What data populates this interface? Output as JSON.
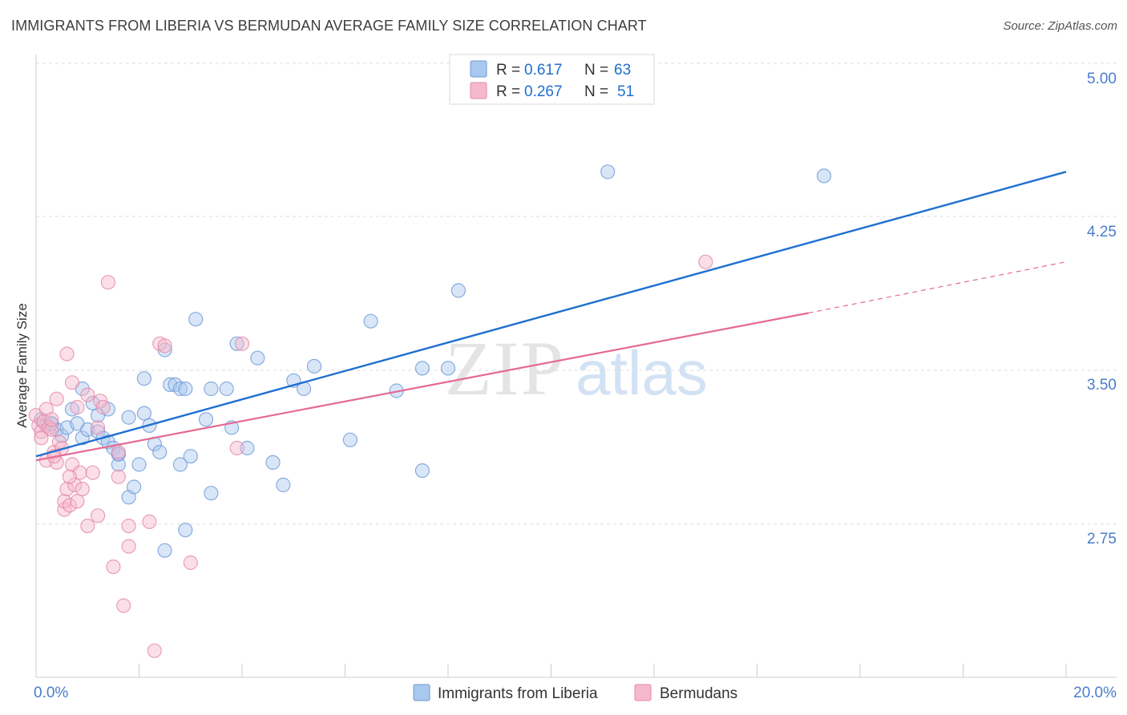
{
  "header": {
    "title": "IMMIGRANTS FROM LIBERIA VS BERMUDAN AVERAGE FAMILY SIZE CORRELATION CHART",
    "source": "Source: ZipAtlas.com"
  },
  "watermark": {
    "zip": "ZIP",
    "atlas": "atlas"
  },
  "legend": {
    "rows": [
      {
        "r_label": "R =",
        "r_value": "0.617",
        "n_label": "N =",
        "n_value": "63"
      },
      {
        "r_label": "R =",
        "r_value": "0.267",
        "n_label": "N =",
        "n_value": "51"
      }
    ]
  },
  "colors": {
    "blue": "#1f6fd0",
    "blue_fill": "#a9c8f0",
    "pink": "#e46a93",
    "pink_fill": "#f6b8cc",
    "tick_text": "#4a7cc9",
    "grid": "#dddddd"
  },
  "chart_data": {
    "type": "scatter",
    "title": "IMMIGRANTS FROM LIBERIA VS BERMUDAN AVERAGE FAMILY SIZE CORRELATION CHART",
    "xlabel": "",
    "ylabel": "Average Family Size",
    "xlim": [
      0,
      20
    ],
    "ylim": [
      2.05,
      5.1
    ],
    "x_tick_labels": [
      "0.0%",
      "20.0%"
    ],
    "y_ticks": [
      2.75,
      3.5,
      4.25,
      5.0
    ],
    "y_tick_labels": [
      "2.75",
      "3.50",
      "4.25",
      "5.00"
    ],
    "grid": true,
    "legend_position": "top-center",
    "series": [
      {
        "name": "Immigrants from Liberia",
        "color": "#1f6fd0",
        "trend": {
          "x": [
            0,
            20
          ],
          "y": [
            3.08,
            4.47
          ]
        },
        "points": [
          [
            0.1,
            3.26
          ],
          [
            0.2,
            3.23
          ],
          [
            0.3,
            3.24
          ],
          [
            0.4,
            3.21
          ],
          [
            0.5,
            3.18
          ],
          [
            0.6,
            3.22
          ],
          [
            0.7,
            3.31
          ],
          [
            0.8,
            3.24
          ],
          [
            0.9,
            3.17
          ],
          [
            0.9,
            3.41
          ],
          [
            1.0,
            3.21
          ],
          [
            1.1,
            3.34
          ],
          [
            1.2,
            3.28
          ],
          [
            1.2,
            3.2
          ],
          [
            1.3,
            3.17
          ],
          [
            1.4,
            3.15
          ],
          [
            1.4,
            3.31
          ],
          [
            1.5,
            3.12
          ],
          [
            1.6,
            3.09
          ],
          [
            1.6,
            3.04
          ],
          [
            1.8,
            2.88
          ],
          [
            1.8,
            3.27
          ],
          [
            1.9,
            2.93
          ],
          [
            2.0,
            3.04
          ],
          [
            2.1,
            3.29
          ],
          [
            2.1,
            3.46
          ],
          [
            2.2,
            3.23
          ],
          [
            2.3,
            3.14
          ],
          [
            2.4,
            3.1
          ],
          [
            2.5,
            3.6
          ],
          [
            2.6,
            3.43
          ],
          [
            2.7,
            3.43
          ],
          [
            2.8,
            3.41
          ],
          [
            2.8,
            3.04
          ],
          [
            2.9,
            3.41
          ],
          [
            2.9,
            2.72
          ],
          [
            3.0,
            3.08
          ],
          [
            3.1,
            3.75
          ],
          [
            3.3,
            3.26
          ],
          [
            3.4,
            3.41
          ],
          [
            3.4,
            2.9
          ],
          [
            3.7,
            3.41
          ],
          [
            3.8,
            3.22
          ],
          [
            3.9,
            3.63
          ],
          [
            4.1,
            3.12
          ],
          [
            4.3,
            3.56
          ],
          [
            4.6,
            3.05
          ],
          [
            4.8,
            2.94
          ],
          [
            5.0,
            3.45
          ],
          [
            5.2,
            3.41
          ],
          [
            5.4,
            3.52
          ],
          [
            6.1,
            3.16
          ],
          [
            6.5,
            3.74
          ],
          [
            7.0,
            3.4
          ],
          [
            7.5,
            3.51
          ],
          [
            7.5,
            3.01
          ],
          [
            8.0,
            3.51
          ],
          [
            8.2,
            3.89
          ],
          [
            11.1,
            4.47
          ],
          [
            15.3,
            4.45
          ],
          [
            2.5,
            2.62
          ],
          [
            1.6,
            3.09
          ],
          [
            0.3,
            3.24
          ]
        ]
      },
      {
        "name": "Bermudans",
        "color": "#e46a93",
        "trend": {
          "x": [
            0,
            15
          ],
          "y": [
            3.06,
            3.78
          ]
        },
        "trend_extension": {
          "x": [
            15,
            20
          ],
          "y": [
            3.78,
            4.03
          ]
        },
        "points": [
          [
            0.0,
            3.28
          ],
          [
            0.05,
            3.23
          ],
          [
            0.1,
            3.2
          ],
          [
            0.1,
            3.17
          ],
          [
            0.15,
            3.25
          ],
          [
            0.2,
            3.31
          ],
          [
            0.2,
            3.06
          ],
          [
            0.25,
            3.22
          ],
          [
            0.3,
            3.21
          ],
          [
            0.3,
            3.26
          ],
          [
            0.35,
            3.1
          ],
          [
            0.4,
            3.36
          ],
          [
            0.4,
            3.05
          ],
          [
            0.45,
            3.15
          ],
          [
            0.5,
            3.12
          ],
          [
            0.55,
            2.82
          ],
          [
            0.55,
            2.86
          ],
          [
            0.6,
            3.58
          ],
          [
            0.6,
            2.92
          ],
          [
            0.65,
            2.84
          ],
          [
            0.7,
            3.44
          ],
          [
            0.7,
            3.04
          ],
          [
            0.75,
            2.94
          ],
          [
            0.8,
            3.32
          ],
          [
            0.8,
            2.86
          ],
          [
            0.85,
            3.0
          ],
          [
            0.9,
            2.92
          ],
          [
            1.0,
            3.38
          ],
          [
            1.0,
            2.74
          ],
          [
            1.1,
            3.0
          ],
          [
            1.2,
            3.22
          ],
          [
            1.25,
            3.35
          ],
          [
            1.3,
            3.32
          ],
          [
            1.4,
            3.93
          ],
          [
            1.5,
            2.54
          ],
          [
            1.6,
            3.1
          ],
          [
            1.6,
            2.98
          ],
          [
            1.7,
            2.35
          ],
          [
            1.8,
            2.64
          ],
          [
            1.8,
            2.74
          ],
          [
            2.2,
            2.76
          ],
          [
            2.3,
            2.13
          ],
          [
            2.4,
            3.63
          ],
          [
            2.5,
            3.62
          ],
          [
            3.0,
            2.56
          ],
          [
            3.9,
            3.12
          ],
          [
            4.0,
            3.63
          ],
          [
            13.0,
            4.03
          ],
          [
            1.2,
            2.79
          ],
          [
            0.65,
            2.98
          ],
          [
            0.35,
            3.08
          ]
        ]
      }
    ]
  },
  "axes": {
    "y_axis_title": "Average Family Size",
    "x_min_label": "0.0%",
    "x_max_label": "20.0%",
    "y_labels": [
      "5.00",
      "4.25",
      "3.50",
      "2.75"
    ]
  },
  "bottom_legend": {
    "items": [
      {
        "label": "Immigrants from Liberia"
      },
      {
        "label": "Bermudans"
      }
    ]
  }
}
